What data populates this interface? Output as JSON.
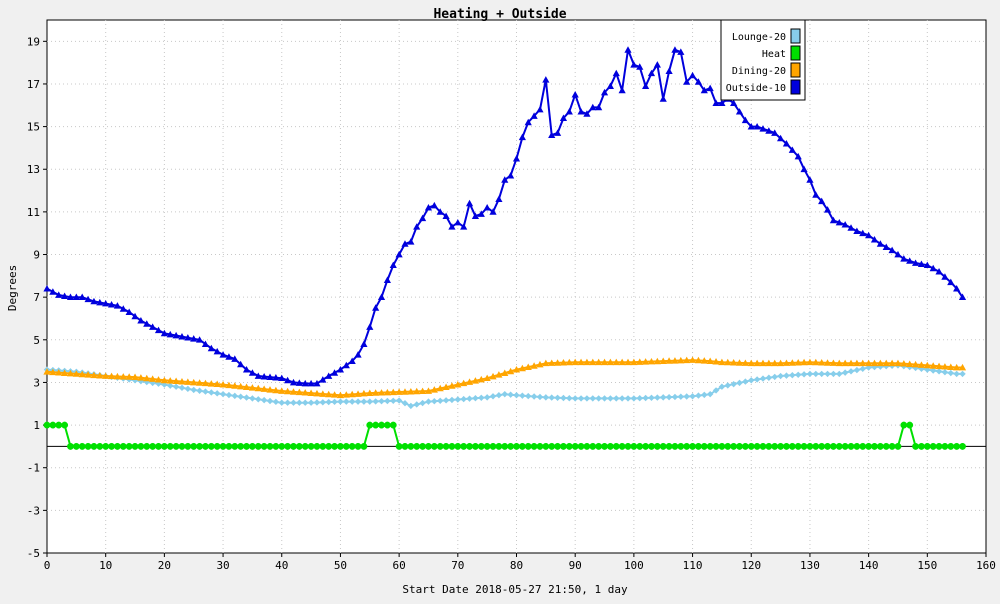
{
  "chart_data": {
    "type": "line",
    "title": "Heating + Outside",
    "xlabel": "Start Date 2018-05-27 21:50, 1 day",
    "ylabel": "Degrees",
    "xlim": [
      0,
      160
    ],
    "ylim": [
      -5,
      20
    ],
    "x_ticks": [
      0,
      10,
      20,
      30,
      40,
      50,
      60,
      70,
      80,
      90,
      100,
      110,
      120,
      130,
      140,
      150,
      160
    ],
    "y_ticks": [
      -5,
      -3,
      -1,
      1,
      3,
      5,
      7,
      9,
      11,
      13,
      15,
      17,
      19
    ],
    "grid": true,
    "legend_position": "top-right",
    "series": [
      {
        "name": "Lounge-20",
        "color": "#87ceeb",
        "marker": "diamond",
        "points": [
          [
            0,
            3.6
          ],
          [
            5,
            3.5
          ],
          [
            10,
            3.3
          ],
          [
            15,
            3.1
          ],
          [
            20,
            2.9
          ],
          [
            25,
            2.65
          ],
          [
            30,
            2.45
          ],
          [
            35,
            2.25
          ],
          [
            40,
            2.05
          ],
          [
            45,
            2.05
          ],
          [
            50,
            2.1
          ],
          [
            55,
            2.1
          ],
          [
            60,
            2.15
          ],
          [
            62,
            1.9
          ],
          [
            65,
            2.1
          ],
          [
            70,
            2.2
          ],
          [
            75,
            2.3
          ],
          [
            78,
            2.45
          ],
          [
            80,
            2.4
          ],
          [
            85,
            2.3
          ],
          [
            90,
            2.25
          ],
          [
            95,
            2.25
          ],
          [
            100,
            2.25
          ],
          [
            105,
            2.3
          ],
          [
            110,
            2.35
          ],
          [
            113,
            2.45
          ],
          [
            115,
            2.8
          ],
          [
            120,
            3.1
          ],
          [
            125,
            3.3
          ],
          [
            130,
            3.4
          ],
          [
            135,
            3.4
          ],
          [
            140,
            3.7
          ],
          [
            145,
            3.8
          ],
          [
            150,
            3.6
          ],
          [
            155,
            3.4
          ],
          [
            156,
            3.4
          ]
        ]
      },
      {
        "name": "Heat",
        "color": "#00e000",
        "marker": "circle",
        "points": [
          [
            0,
            1
          ],
          [
            1,
            1
          ],
          [
            2,
            1
          ],
          [
            3,
            1
          ],
          [
            4,
            0
          ],
          [
            10,
            0
          ],
          [
            20,
            0
          ],
          [
            30,
            0
          ],
          [
            40,
            0
          ],
          [
            50,
            0
          ],
          [
            54,
            0
          ],
          [
            55,
            1
          ],
          [
            56,
            1
          ],
          [
            57,
            1
          ],
          [
            58,
            1
          ],
          [
            59,
            1
          ],
          [
            60,
            0
          ],
          [
            70,
            0
          ],
          [
            80,
            0
          ],
          [
            90,
            0
          ],
          [
            100,
            0
          ],
          [
            110,
            0
          ],
          [
            120,
            0
          ],
          [
            130,
            0
          ],
          [
            140,
            0
          ],
          [
            145,
            0
          ],
          [
            146,
            1
          ],
          [
            147,
            1
          ],
          [
            148,
            0
          ],
          [
            150,
            0
          ],
          [
            156,
            0
          ]
        ]
      },
      {
        "name": "Dining-20",
        "color": "#ffa500",
        "marker": "triangle",
        "points": [
          [
            0,
            3.5
          ],
          [
            5,
            3.4
          ],
          [
            10,
            3.3
          ],
          [
            15,
            3.25
          ],
          [
            20,
            3.1
          ],
          [
            25,
            3.0
          ],
          [
            30,
            2.9
          ],
          [
            35,
            2.75
          ],
          [
            40,
            2.6
          ],
          [
            45,
            2.5
          ],
          [
            50,
            2.4
          ],
          [
            55,
            2.5
          ],
          [
            60,
            2.55
          ],
          [
            65,
            2.6
          ],
          [
            70,
            2.9
          ],
          [
            75,
            3.2
          ],
          [
            80,
            3.6
          ],
          [
            85,
            3.9
          ],
          [
            90,
            3.95
          ],
          [
            95,
            3.95
          ],
          [
            100,
            3.95
          ],
          [
            105,
            4.0
          ],
          [
            110,
            4.05
          ],
          [
            113,
            4.0
          ],
          [
            115,
            3.95
          ],
          [
            120,
            3.9
          ],
          [
            125,
            3.9
          ],
          [
            130,
            3.95
          ],
          [
            135,
            3.9
          ],
          [
            140,
            3.9
          ],
          [
            145,
            3.9
          ],
          [
            150,
            3.8
          ],
          [
            155,
            3.7
          ],
          [
            156,
            3.7
          ]
        ]
      },
      {
        "name": "Outside-10",
        "color": "#0000dd",
        "marker": "triangle",
        "points": [
          [
            0,
            7.4
          ],
          [
            2,
            7.1
          ],
          [
            4,
            7.0
          ],
          [
            6,
            7.0
          ],
          [
            8,
            6.8
          ],
          [
            10,
            6.7
          ],
          [
            12,
            6.6
          ],
          [
            14,
            6.3
          ],
          [
            16,
            5.9
          ],
          [
            18,
            5.6
          ],
          [
            20,
            5.3
          ],
          [
            22,
            5.2
          ],
          [
            24,
            5.1
          ],
          [
            26,
            5.0
          ],
          [
            28,
            4.6
          ],
          [
            30,
            4.3
          ],
          [
            32,
            4.1
          ],
          [
            34,
            3.6
          ],
          [
            36,
            3.3
          ],
          [
            38,
            3.25
          ],
          [
            40,
            3.2
          ],
          [
            42,
            3.0
          ],
          [
            44,
            2.95
          ],
          [
            46,
            2.95
          ],
          [
            48,
            3.3
          ],
          [
            50,
            3.6
          ],
          [
            52,
            4.0
          ],
          [
            53,
            4.3
          ],
          [
            54,
            4.8
          ],
          [
            55,
            5.6
          ],
          [
            56,
            6.5
          ],
          [
            57,
            7.0
          ],
          [
            58,
            7.8
          ],
          [
            59,
            8.5
          ],
          [
            60,
            9.0
          ],
          [
            61,
            9.5
          ],
          [
            62,
            9.6
          ],
          [
            63,
            10.3
          ],
          [
            64,
            10.7
          ],
          [
            65,
            11.2
          ],
          [
            66,
            11.3
          ],
          [
            67,
            11.0
          ],
          [
            68,
            10.8
          ],
          [
            69,
            10.3
          ],
          [
            70,
            10.5
          ],
          [
            71,
            10.3
          ],
          [
            72,
            11.4
          ],
          [
            73,
            10.8
          ],
          [
            74,
            10.9
          ],
          [
            75,
            11.2
          ],
          [
            76,
            11.0
          ],
          [
            77,
            11.6
          ],
          [
            78,
            12.5
          ],
          [
            79,
            12.7
          ],
          [
            80,
            13.5
          ],
          [
            81,
            14.5
          ],
          [
            82,
            15.2
          ],
          [
            83,
            15.5
          ],
          [
            84,
            15.8
          ],
          [
            85,
            17.2
          ],
          [
            86,
            14.6
          ],
          [
            87,
            14.7
          ],
          [
            88,
            15.4
          ],
          [
            89,
            15.7
          ],
          [
            90,
            16.5
          ],
          [
            91,
            15.7
          ],
          [
            92,
            15.6
          ],
          [
            93,
            15.9
          ],
          [
            94,
            15.9
          ],
          [
            95,
            16.6
          ],
          [
            96,
            16.9
          ],
          [
            97,
            17.5
          ],
          [
            98,
            16.7
          ],
          [
            99,
            18.6
          ],
          [
            100,
            17.9
          ],
          [
            101,
            17.8
          ],
          [
            102,
            16.9
          ],
          [
            103,
            17.5
          ],
          [
            104,
            17.9
          ],
          [
            105,
            16.3
          ],
          [
            106,
            17.6
          ],
          [
            107,
            18.6
          ],
          [
            108,
            18.5
          ],
          [
            109,
            17.1
          ],
          [
            110,
            17.4
          ],
          [
            111,
            17.1
          ],
          [
            112,
            16.7
          ],
          [
            113,
            16.8
          ],
          [
            114,
            16.1
          ],
          [
            115,
            16.1
          ],
          [
            116,
            16.3
          ],
          [
            117,
            16.1
          ],
          [
            118,
            15.7
          ],
          [
            119,
            15.3
          ],
          [
            120,
            15.0
          ],
          [
            121,
            15.0
          ],
          [
            122,
            14.9
          ],
          [
            124,
            14.7
          ],
          [
            126,
            14.2
          ],
          [
            128,
            13.6
          ],
          [
            129,
            13.0
          ],
          [
            130,
            12.5
          ],
          [
            131,
            11.8
          ],
          [
            132,
            11.5
          ],
          [
            133,
            11.1
          ],
          [
            134,
            10.6
          ],
          [
            136,
            10.4
          ],
          [
            138,
            10.1
          ],
          [
            140,
            9.9
          ],
          [
            142,
            9.5
          ],
          [
            144,
            9.2
          ],
          [
            146,
            8.8
          ],
          [
            148,
            8.6
          ],
          [
            150,
            8.5
          ],
          [
            152,
            8.2
          ],
          [
            154,
            7.7
          ],
          [
            155,
            7.4
          ],
          [
            156,
            7.0
          ]
        ]
      }
    ]
  }
}
